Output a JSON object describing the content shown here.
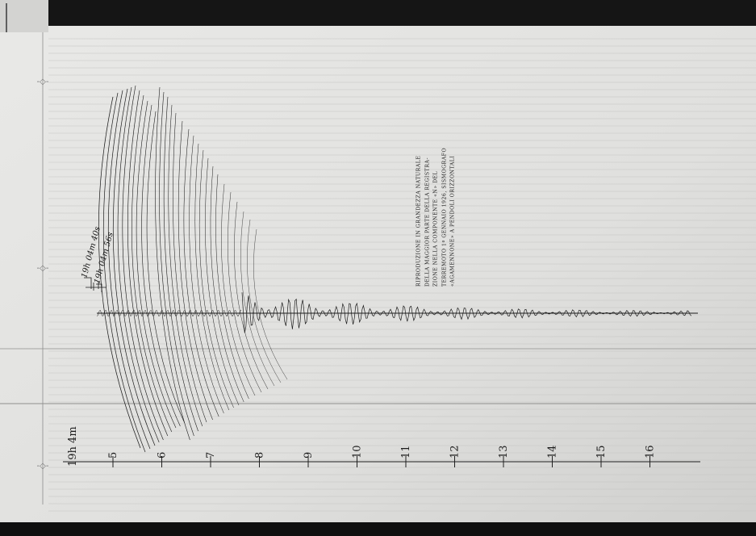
{
  "caption": {
    "lines": [
      "RIPRODUZIONE IN GRANDEZZA NATURALE",
      "DELLA MAGGIOR PARTE DELLA REGISTRA-",
      "ZIONE NELLA COMPONENTE «N» DEL",
      "TERREMOTO 1º GENNAIO 1926, SISMOGRAFO",
      "«AGAMENNONE» A PENDOLI ORIZZONTALI"
    ]
  },
  "annotations": {
    "onset_1": "19h 04m 40s",
    "onset_2": "19h 04m 56s",
    "time_origin": "19h 4m"
  },
  "time_axis": {
    "ticks": [
      "5",
      "6",
      "7",
      "8",
      "9",
      "10",
      "11",
      "12",
      "13",
      "14",
      "15",
      "16"
    ]
  },
  "colors": {
    "paper": "#e2e2e0",
    "ink": "#1c1c1c",
    "dark_band": "#111111"
  }
}
